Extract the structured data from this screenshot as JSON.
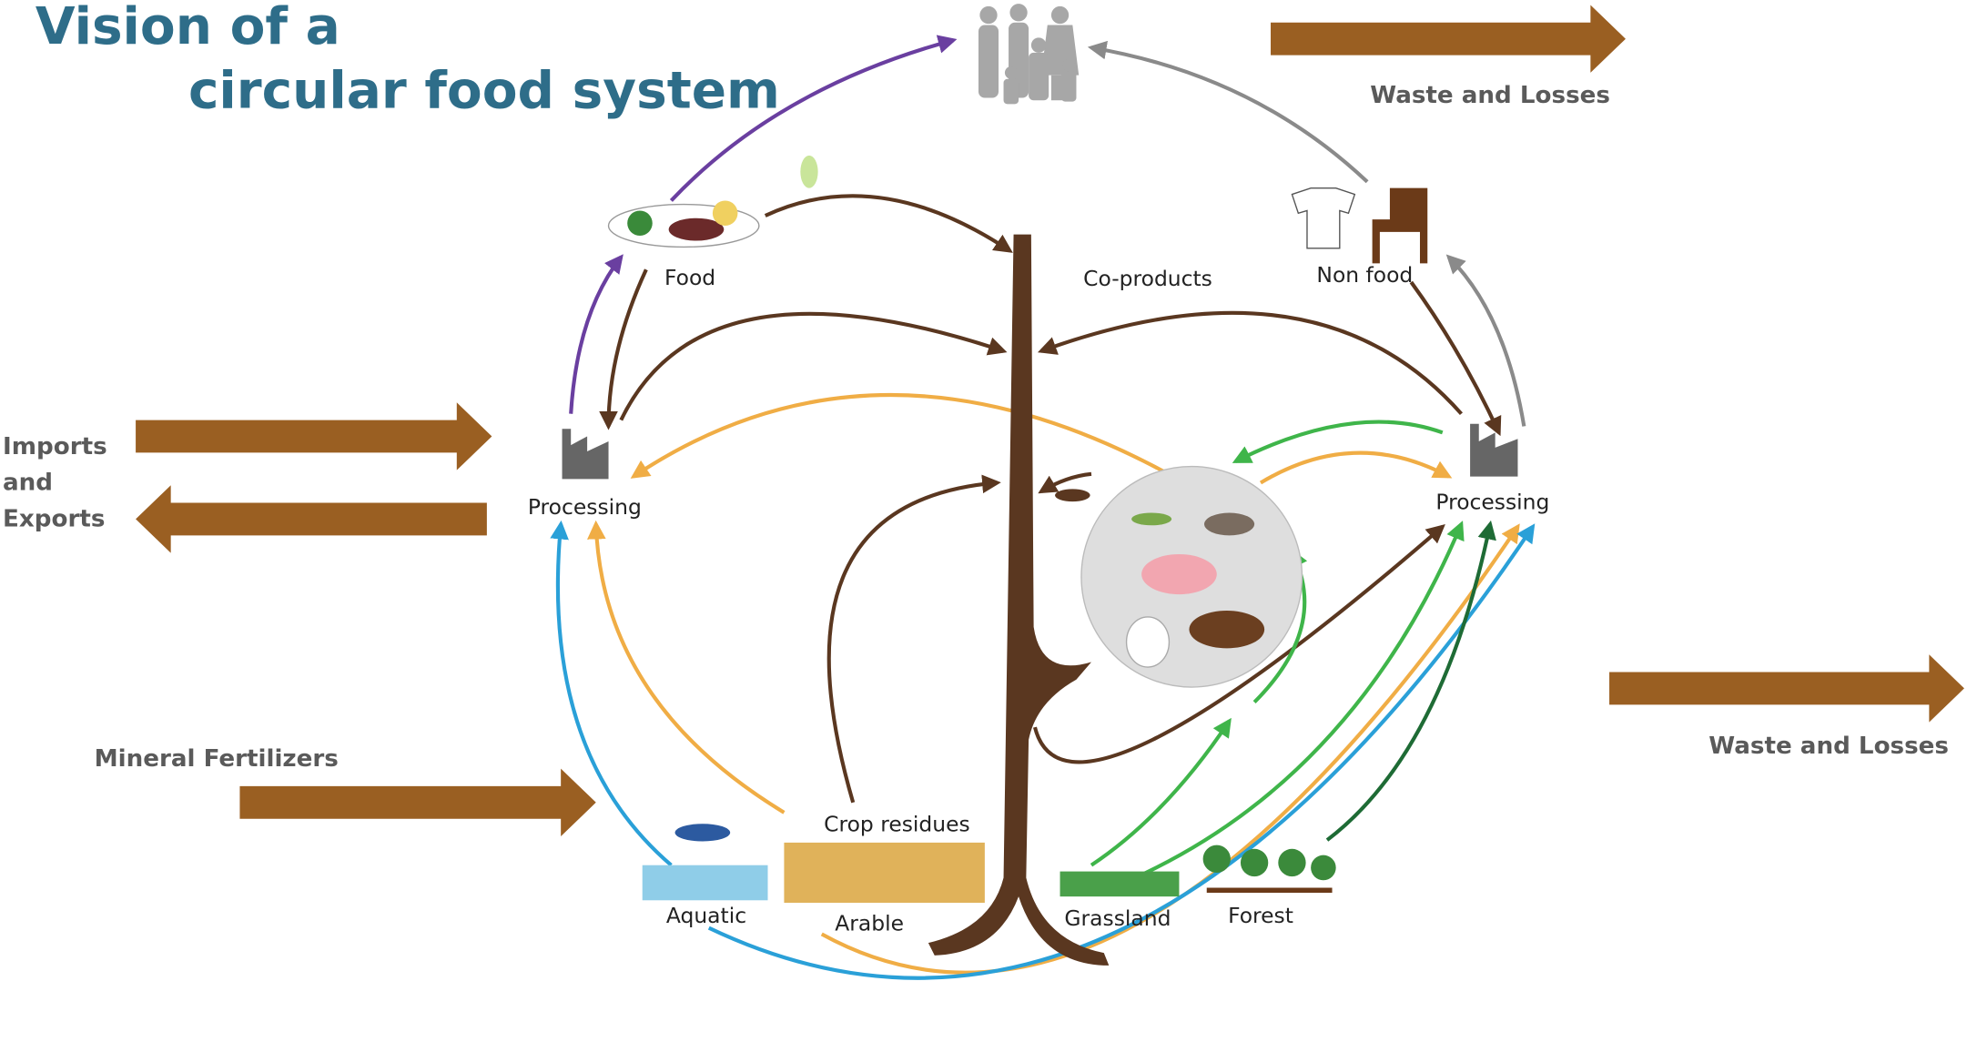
{
  "title": [
    "Vision of a",
    "circular food system"
  ],
  "external_flows": [
    {
      "lines": [
        "Waste and Losses"
      ]
    },
    {
      "lines": [
        "Imports",
        "and",
        "Exports"
      ]
    },
    {
      "lines": [
        "Mineral Fertilizers"
      ]
    },
    {
      "lines": [
        "Waste and Losses"
      ]
    }
  ],
  "nodes": [
    "Food",
    "Co-products",
    "Non food",
    "Processing",
    "Processing",
    "Crop residues",
    "Aquatic",
    "Arable",
    "Grassland",
    "Forest"
  ]
}
